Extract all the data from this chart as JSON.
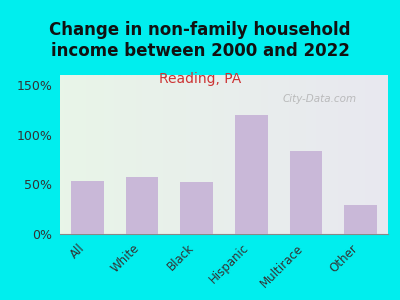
{
  "title": "Change in non-family household\nincome between 2000 and 2022",
  "subtitle": "Reading, PA",
  "categories": [
    "All",
    "White",
    "Black",
    "Hispanic",
    "Multirace",
    "Other"
  ],
  "values": [
    53,
    57,
    52,
    120,
    84,
    29
  ],
  "bar_color": "#c9b8d8",
  "title_fontsize": 12,
  "subtitle_fontsize": 10,
  "subtitle_color": "#cc3333",
  "background_outer": "#00eeee",
  "yticks": [
    0,
    50,
    100,
    150
  ],
  "ytick_labels": [
    "0%",
    "50%",
    "100%",
    "150%"
  ],
  "ylim": [
    0,
    160
  ],
  "watermark": "City-Data.com",
  "watermark_color": "#aaaaaa"
}
